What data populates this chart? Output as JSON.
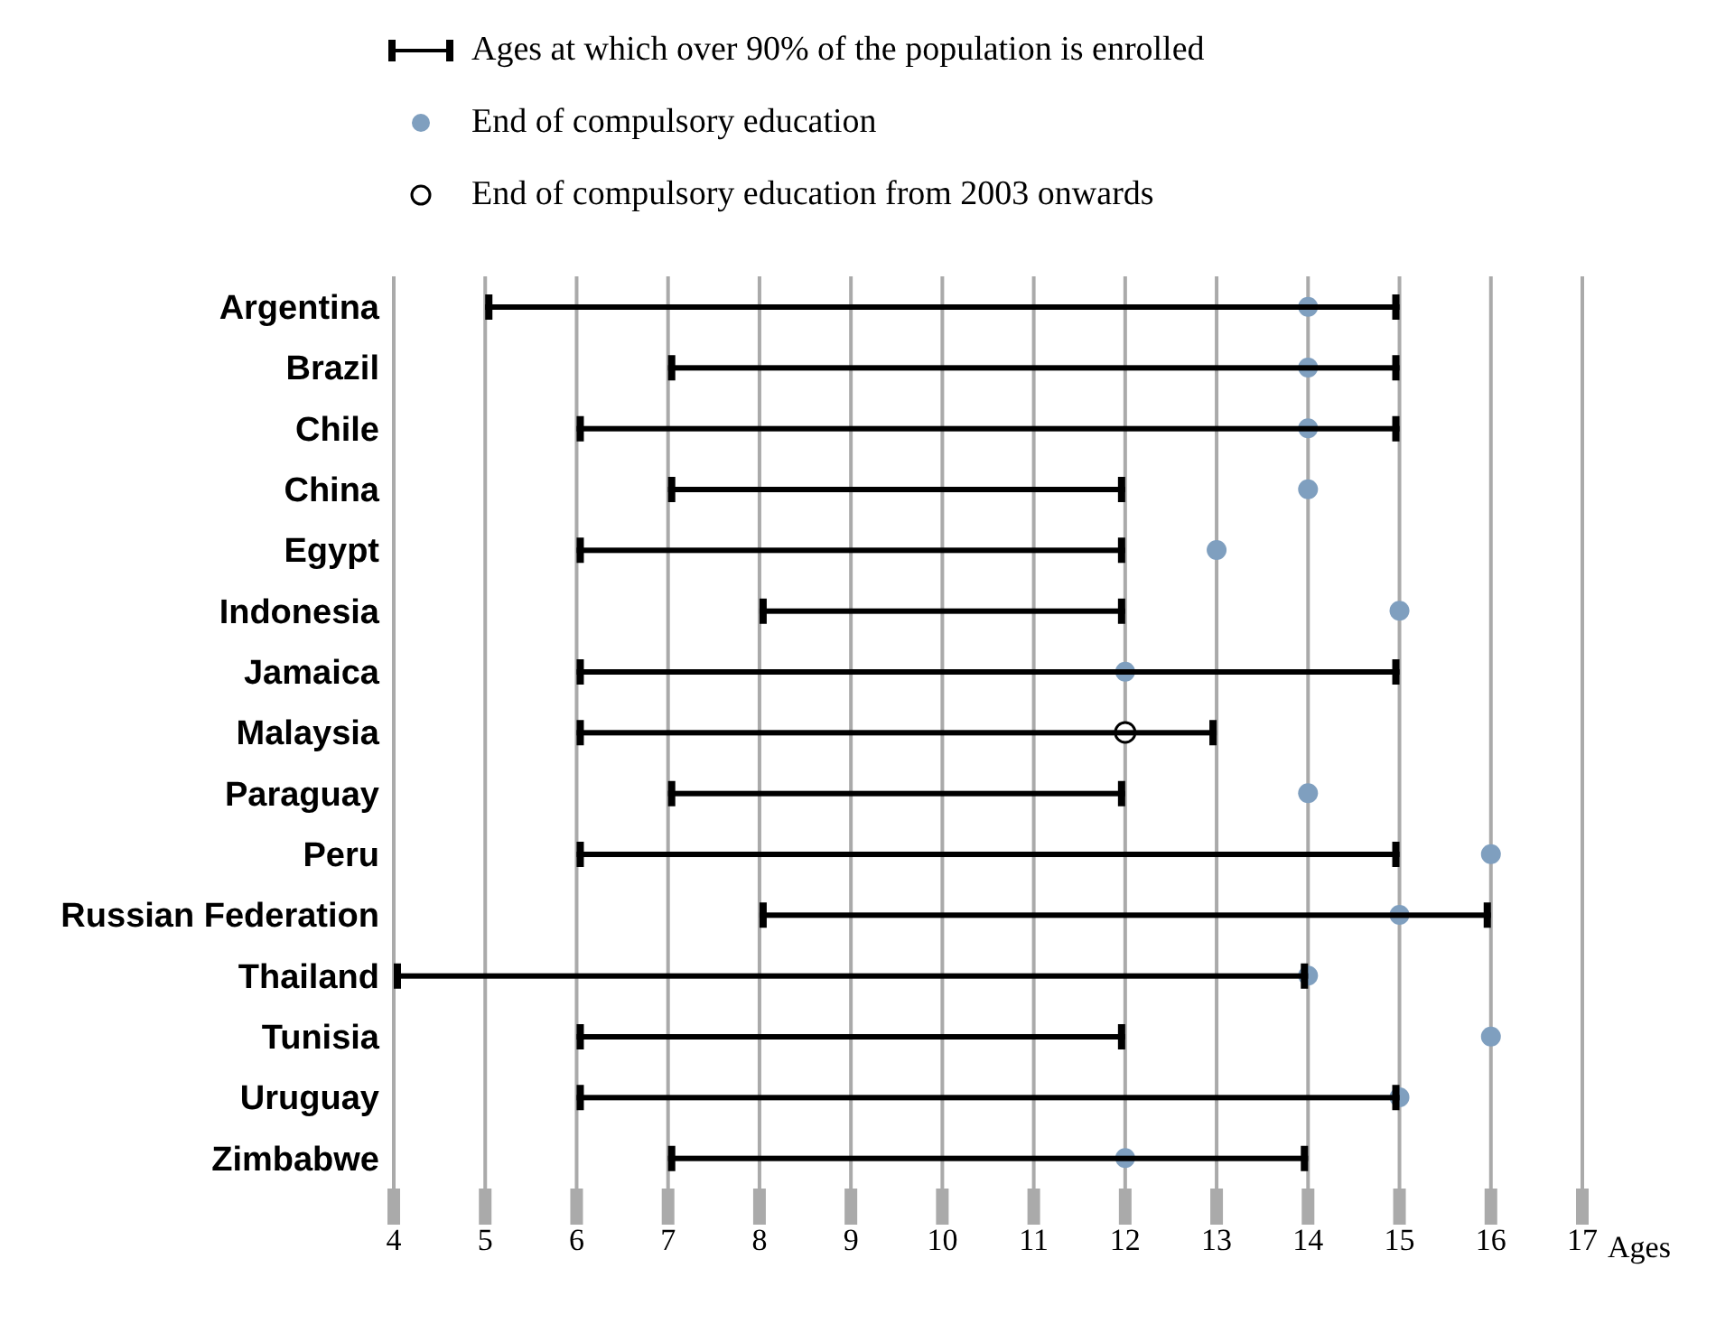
{
  "chart_data": {
    "type": "bar",
    "orientation": "horizontal",
    "xlabel": "Ages",
    "categories": [
      "Argentina",
      "Brazil",
      "Chile",
      "China",
      "Egypt",
      "Indonesia",
      "Jamaica",
      "Malaysia",
      "Paraguay",
      "Peru",
      "Russian Federation",
      "Thailand",
      "Tunisia",
      "Uruguay",
      "Zimbabwe"
    ],
    "series": [
      {
        "name": "Ages at which over 90% of the population is enrolled",
        "color": "#000000",
        "base": [
          5,
          7,
          6,
          7,
          6,
          8,
          6,
          6,
          7,
          6,
          8,
          4,
          6,
          6,
          7
        ],
        "values": [
          10,
          8,
          9,
          5,
          6,
          4,
          9,
          7,
          5,
          9,
          8,
          10,
          6,
          9,
          7
        ]
      },
      {
        "type": "scatter",
        "name": "End of compulsory education",
        "color": "#7f9fbf",
        "marker": "circle",
        "values": [
          14,
          14,
          14,
          14,
          13,
          15,
          12,
          null,
          14,
          16,
          15,
          14,
          16,
          15,
          12
        ]
      },
      {
        "type": "scatter",
        "name": "End of compulsory education from 2003 onwards",
        "color": "#ffffff",
        "marker": "circle",
        "values": [
          null,
          null,
          null,
          null,
          null,
          null,
          null,
          12,
          null,
          null,
          null,
          null,
          null,
          null,
          null
        ]
      }
    ],
    "xlim": [
      4,
      17
    ],
    "xticks": [
      4,
      5,
      6,
      7,
      8,
      9,
      10,
      11,
      12,
      13,
      14,
      15,
      16,
      17
    ],
    "grid": "x",
    "legend": "top"
  }
}
